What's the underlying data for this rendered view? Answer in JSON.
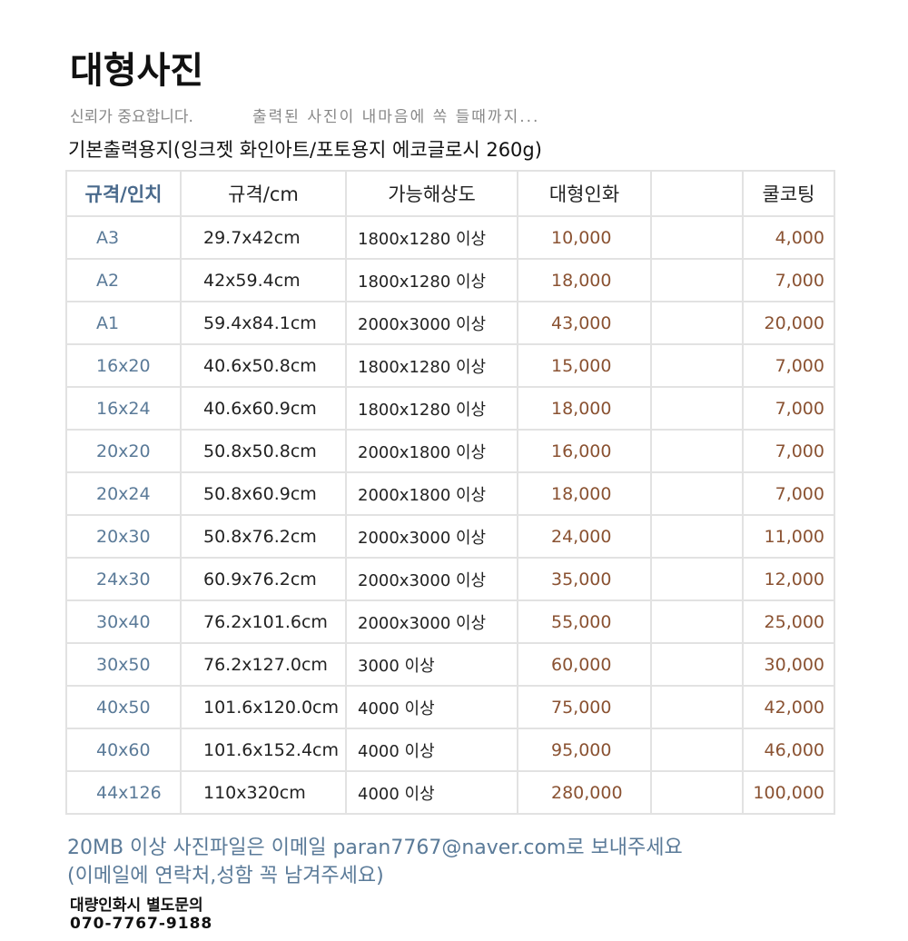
{
  "header": {
    "title": "대형사진",
    "tagline_left": "신뢰가 중요합니다.",
    "tagline_right": "출력된 사진이 내마음에 쏙 들때까지...",
    "paper_info": "기본출력용지(잉크젯 화인아트/포토용지 에코글로시 260g)"
  },
  "table": {
    "headers": [
      "규격/인치",
      "규격/cm",
      "가능해상도",
      "대형인화",
      "",
      "쿨코팅"
    ],
    "rows": [
      [
        "A3",
        "29.7x42cm",
        "1800x1280 이상",
        "10,000",
        "",
        "4,000"
      ],
      [
        "A2",
        "42x59.4cm",
        "1800x1280 이상",
        "18,000",
        "",
        "7,000"
      ],
      [
        "A1",
        "59.4x84.1cm",
        "2000x3000 이상",
        "43,000",
        "",
        "20,000"
      ],
      [
        "16x20",
        "40.6x50.8cm",
        "1800x1280 이상",
        "15,000",
        "",
        "7,000"
      ],
      [
        "16x24",
        "40.6x60.9cm",
        "1800x1280 이상",
        "18,000",
        "",
        "7,000"
      ],
      [
        "20x20",
        "50.8x50.8cm",
        "2000x1800 이상",
        "16,000",
        "",
        "7,000"
      ],
      [
        "20x24",
        "50.8x60.9cm",
        "2000x1800 이상",
        "18,000",
        "",
        "7,000"
      ],
      [
        "20x30",
        "50.8x76.2cm",
        "2000x3000 이상",
        "24,000",
        "",
        "11,000"
      ],
      [
        "24x30",
        "60.9x76.2cm",
        "2000x3000 이상",
        "35,000",
        "",
        "12,000"
      ],
      [
        "30x40",
        "76.2x101.6cm",
        "2000x3000 이상",
        "55,000",
        "",
        "25,000"
      ],
      [
        "30x50",
        "76.2x127.0cm",
        "3000 이상",
        "60,000",
        "",
        "30,000"
      ],
      [
        "40x50",
        "101.6x120.0cm",
        "4000 이상",
        "75,000",
        "",
        "42,000"
      ],
      [
        "40x60",
        "101.6x152.4cm",
        "4000 이상",
        "95,000",
        "",
        "46,000"
      ],
      [
        "44x126",
        "110x320cm",
        "4000 이상",
        "280,000",
        "",
        "100,000"
      ]
    ]
  },
  "footer": {
    "email_note": "20MB 이상 사진파일은 이메일 paran7767@naver.com로 보내주세요",
    "contact_note": "(이메일에 연락처,성함 꼭 남겨주세요)",
    "bulk_note": "대량인화시 별도문의",
    "phone": "070-7767-9188"
  }
}
